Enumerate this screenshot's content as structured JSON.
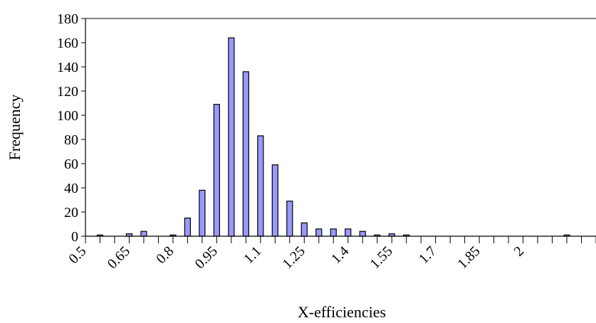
{
  "chart_data": {
    "type": "bar",
    "title": "",
    "xlabel": "X-efficiencies",
    "ylabel": "Frequency",
    "ylim": [
      0,
      180
    ],
    "yticks": [
      0,
      20,
      40,
      60,
      80,
      100,
      120,
      140,
      160,
      180
    ],
    "x_tick_labels": [
      "0.5",
      "0.65",
      "0.8",
      "0.95",
      "1.1",
      "1.25",
      "1.4",
      "1.55",
      "1.7",
      "1.85",
      "2"
    ],
    "grid": false,
    "legend": "none",
    "bar_color": "#9999ff",
    "bar_edge_color": "#000000",
    "x": [
      0.55,
      0.6,
      0.65,
      0.7,
      0.75,
      0.8,
      0.85,
      0.9,
      0.95,
      1.0,
      1.05,
      1.1,
      1.15,
      1.2,
      1.25,
      1.3,
      1.35,
      1.4,
      1.45,
      1.5,
      1.55,
      1.6,
      1.65,
      1.7,
      1.75,
      1.8,
      1.85,
      1.9,
      1.95,
      2.0,
      2.05,
      2.1,
      2.15,
      2.2
    ],
    "values": [
      1,
      0,
      2,
      4,
      0,
      1,
      15,
      38,
      109,
      164,
      136,
      83,
      59,
      29,
      11,
      6,
      6,
      6,
      4,
      1,
      2,
      1,
      0,
      0,
      0,
      0,
      0,
      0,
      0,
      0,
      0,
      0,
      1,
      0
    ]
  }
}
